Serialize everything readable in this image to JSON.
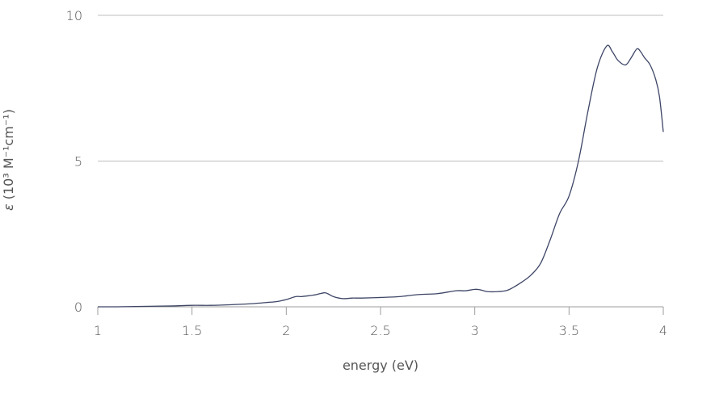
{
  "chart_data": {
    "type": "line",
    "title": "",
    "xlabel": "energy (eV)",
    "ylabel_symbol": "ε",
    "ylabel_text": " (10³ M⁻¹cm⁻¹)",
    "xlim": [
      1,
      4
    ],
    "ylim": [
      0,
      10
    ],
    "x_ticks": [
      1,
      1.5,
      2,
      2.5,
      3,
      3.5,
      4
    ],
    "x_tick_labels": [
      "1",
      "1.5",
      "2",
      "2.5",
      "3",
      "3.5",
      "4"
    ],
    "y_ticks": [
      0,
      5,
      10
    ],
    "y_tick_labels": [
      "0",
      "5",
      "10"
    ],
    "grid": "horizontal",
    "legend": "none",
    "colors": {
      "line": "#3d4566",
      "grid": "#bdbdbd",
      "axis": "#9e9e9e",
      "text": "#555555"
    },
    "series": [
      {
        "x": [
          1.0,
          1.1,
          1.2,
          1.3,
          1.4,
          1.5,
          1.6,
          1.7,
          1.8,
          1.9,
          1.95,
          2.0,
          2.05,
          2.08,
          2.12,
          2.16,
          2.2,
          2.22,
          2.25,
          2.3,
          2.35,
          2.4,
          2.5,
          2.6,
          2.7,
          2.8,
          2.9,
          2.95,
          3.0,
          3.03,
          3.07,
          3.12,
          3.17,
          3.2,
          3.25,
          3.3,
          3.35,
          3.4,
          3.45,
          3.5,
          3.55,
          3.6,
          3.65,
          3.7,
          3.73,
          3.76,
          3.8,
          3.83,
          3.86,
          3.88,
          3.9,
          3.93,
          3.96,
          3.98,
          4.0
        ],
        "y": [
          0.0,
          0.0,
          0.01,
          0.02,
          0.03,
          0.05,
          0.05,
          0.07,
          0.1,
          0.15,
          0.18,
          0.25,
          0.35,
          0.35,
          0.38,
          0.42,
          0.48,
          0.45,
          0.35,
          0.28,
          0.3,
          0.3,
          0.32,
          0.35,
          0.42,
          0.45,
          0.55,
          0.55,
          0.6,
          0.58,
          0.52,
          0.52,
          0.56,
          0.65,
          0.85,
          1.1,
          1.5,
          2.3,
          3.2,
          3.8,
          5.0,
          6.7,
          8.2,
          8.95,
          8.75,
          8.45,
          8.3,
          8.55,
          8.85,
          8.75,
          8.55,
          8.3,
          7.8,
          7.2,
          6.0
        ]
      }
    ]
  }
}
